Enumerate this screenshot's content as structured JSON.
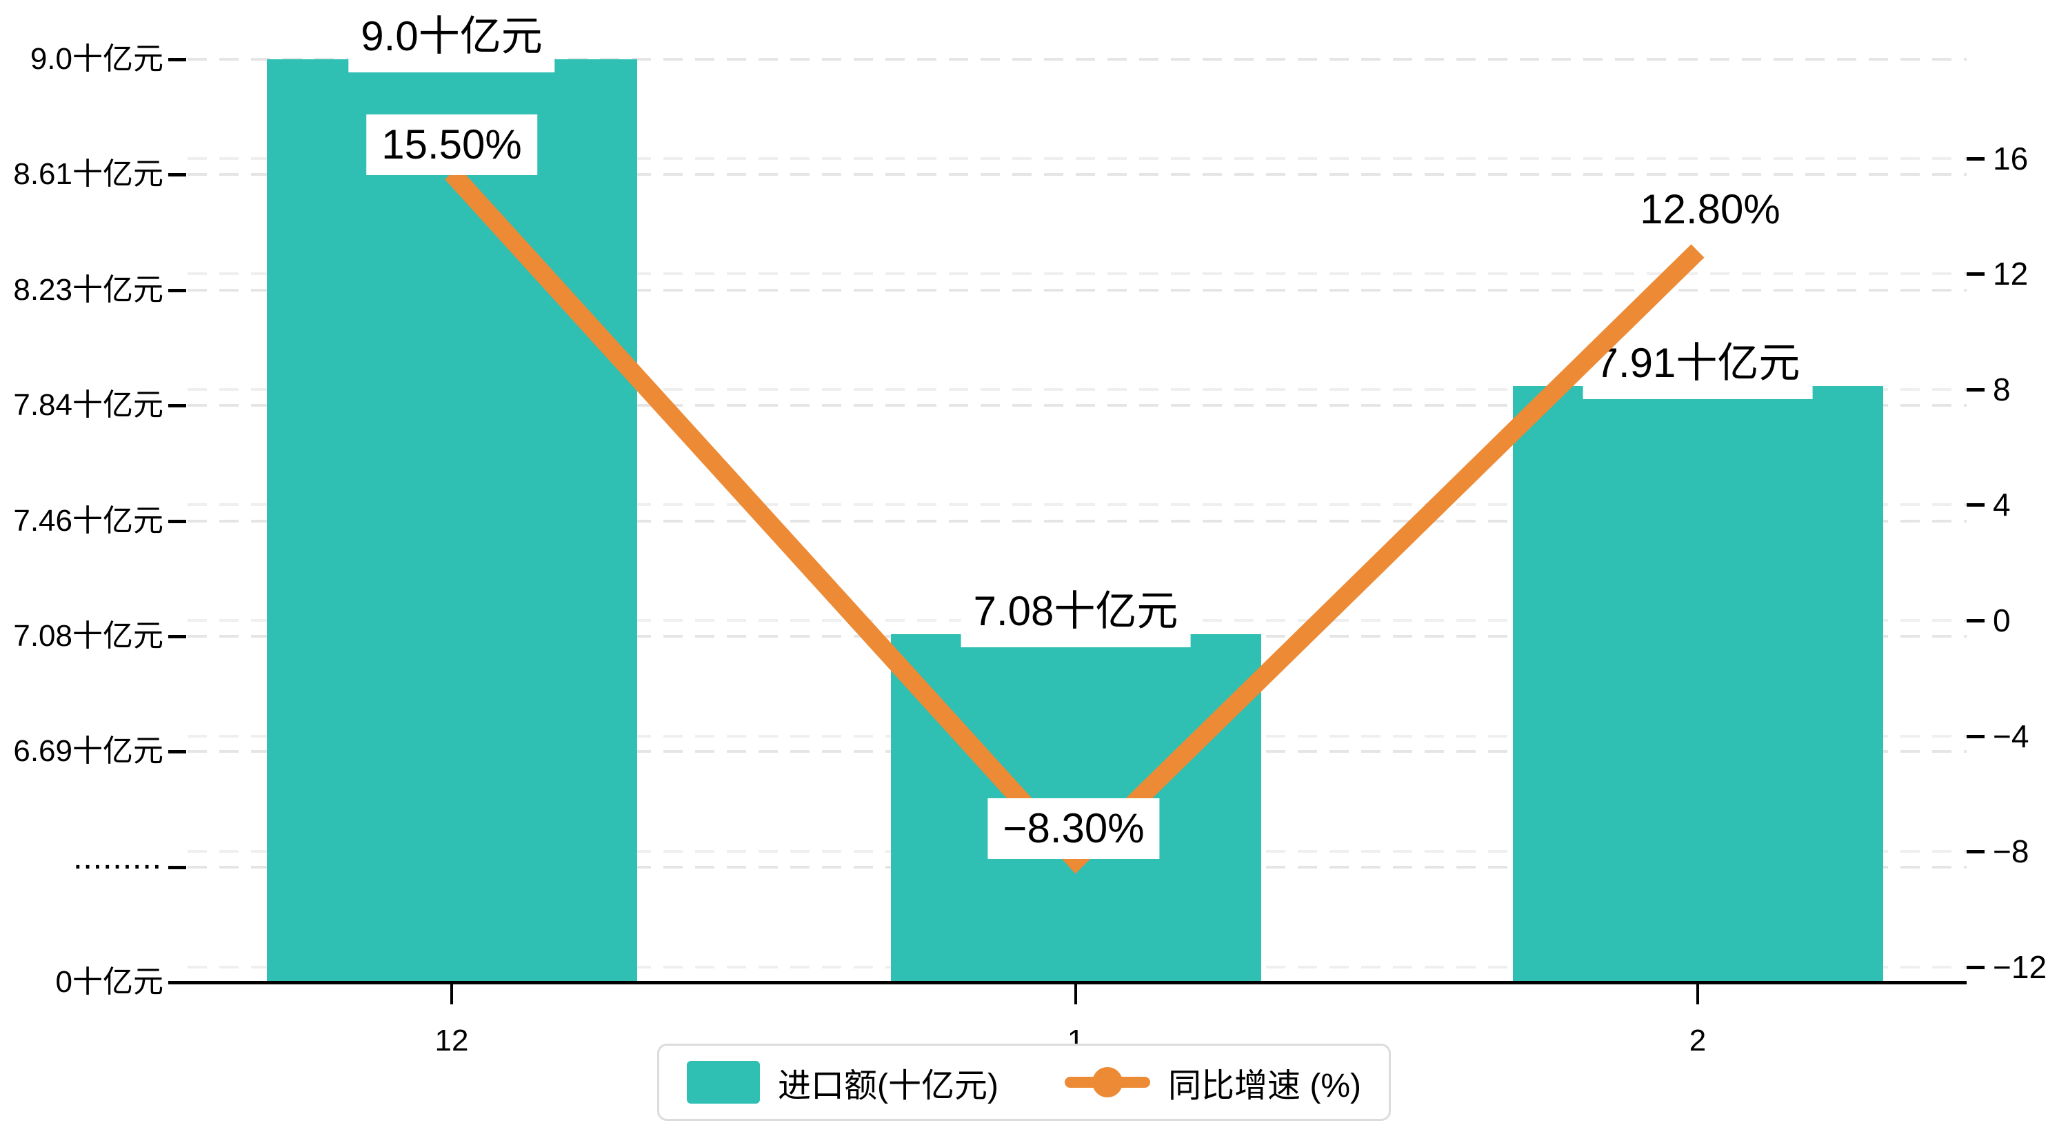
{
  "chart_data": {
    "type": "combo-bar-line",
    "categories": [
      "12",
      "1",
      "2"
    ],
    "series": [
      {
        "name": "进口额(十亿元)",
        "type": "bar",
        "values": [
          9.0,
          7.08,
          7.91
        ],
        "labels": [
          "9.0十亿元",
          "7.08十亿元",
          "7.91十亿元"
        ],
        "color": "#2fbfb3"
      },
      {
        "name": "同比增速 (%)",
        "type": "line",
        "values": [
          15.5,
          -8.3,
          12.8
        ],
        "labels": [
          "15.50%",
          "−8.30%",
          "12.80%"
        ],
        "color": "#ed8a35"
      }
    ],
    "left_axis": {
      "tick_labels": [
        "9.0十亿元",
        "8.61十亿元",
        "8.23十亿元",
        "7.84十亿元",
        "7.46十亿元",
        "7.08十亿元",
        "6.69十亿元",
        "·········",
        "0十亿元"
      ],
      "visible_range_top": 9.0,
      "visible_range_break": 6.69,
      "bottom_value": 0,
      "note": "axis break between 6.69 and 0 shown as dotted tick"
    },
    "right_axis": {
      "tick_labels": [
        "16",
        "12",
        "8",
        "4",
        "0",
        "−4",
        "−8",
        "−12"
      ],
      "tick_values": [
        16,
        12,
        8,
        4,
        0,
        -4,
        -8,
        -12
      ]
    },
    "grid": true,
    "legend_position": "bottom",
    "colors": {
      "bar": "#2fbfb3",
      "line": "#ed8a35",
      "grid_left": "#e5e5e5",
      "grid_right": "#efefef",
      "axis": "#000000",
      "label_bg": "#ffffff",
      "legend_border": "#dcdcdc"
    }
  },
  "legend": {
    "items": [
      {
        "label": "进口额(十亿元)",
        "marker": "bar-swatch"
      },
      {
        "label": "同比增速 (%)",
        "marker": "line-dot"
      }
    ]
  }
}
